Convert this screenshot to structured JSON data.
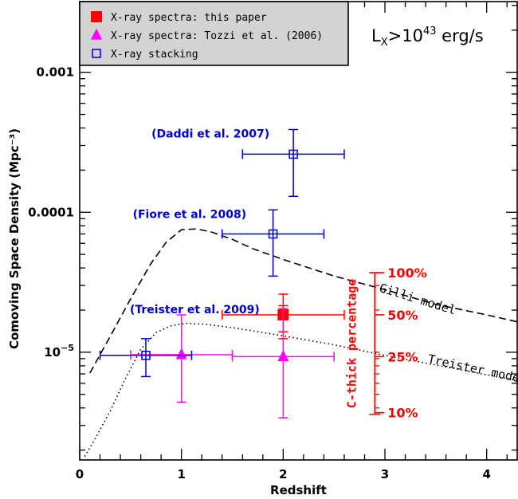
{
  "chart_data": {
    "type": "scatter",
    "title": "",
    "xlabel": "Redshift",
    "ylabel": "Comoving Space Density (Mpc⁻³)",
    "y_scale": "log",
    "xlim": [
      0,
      4.3
    ],
    "ylim": [
      1.7e-06,
      0.0032
    ],
    "grid": false,
    "legend_position": "top-left",
    "x_ticks": [
      {
        "value": 0,
        "label": "0"
      },
      {
        "value": 1,
        "label": "1"
      },
      {
        "value": 2,
        "label": "2"
      },
      {
        "value": 3,
        "label": "3"
      },
      {
        "value": 4,
        "label": "4"
      }
    ],
    "y_ticks": [
      {
        "value": 0.001,
        "label": "0.001"
      },
      {
        "value": 0.0001,
        "label": "0.0001"
      }
    ],
    "y_tick_exp": {
      "value": 1e-05,
      "base": "10",
      "exp": "−5"
    },
    "luminosity_label": {
      "base": "L",
      "sub": "X",
      "gt": ">10",
      "sup": "43",
      "rest": " erg/s"
    },
    "legend": [
      {
        "label": "X-ray spectra: this paper",
        "marker": "filled-square",
        "color": "#ff0000"
      },
      {
        "label": "X-ray spectra: Tozzi et al. (2006)",
        "marker": "filled-triangle",
        "color": "#ff00ff"
      },
      {
        "label": "X-ray stacking",
        "marker": "open-square",
        "color": "#0000cc"
      }
    ],
    "series": [
      {
        "name": "X-ray spectra: this paper",
        "marker": "filled-square",
        "color": "#ff0000",
        "points": [
          {
            "x": 2.0,
            "y": 1.85e-05,
            "xerr": [
              1.4,
              2.6
            ],
            "yerr": [
              1.25e-05,
              2.6e-05
            ],
            "yerr_inner": [
              1.4e-05,
              2.15e-05
            ]
          }
        ]
      },
      {
        "name": "X-ray spectra: Tozzi et al. (2006)",
        "marker": "filled-triangle",
        "color": "#ff00ff",
        "points": [
          {
            "x": 1.0,
            "y": 9.6e-06,
            "xerr": [
              0.5,
              1.5
            ],
            "yerr": [
              4.4e-06,
              1.85e-05
            ]
          },
          {
            "x": 2.0,
            "y": 9.3e-06,
            "xerr": [
              1.5,
              2.5
            ],
            "yerr": [
              3.4e-06,
              2.05e-05
            ]
          }
        ]
      },
      {
        "name": "X-ray stacking",
        "marker": "open-square",
        "color": "#0000cc",
        "points": [
          {
            "x": 2.1,
            "y": 0.00026,
            "xerr": [
              1.6,
              2.6
            ],
            "yerr": [
              0.00013,
              0.00039
            ],
            "label": "(Daddi et al. 2007)"
          },
          {
            "x": 1.9,
            "y": 7e-05,
            "xerr": [
              1.4,
              2.4
            ],
            "yerr": [
              3.5e-05,
              0.000104
            ],
            "label": "(Fiore et al. 2008)"
          },
          {
            "x": 0.65,
            "y": 9.5e-06,
            "xerr": [
              0.2,
              1.1
            ],
            "yerr": [
              6.7e-06,
              1.25e-05
            ],
            "label": "(Treister et al. 2009)"
          }
        ]
      }
    ],
    "model_curves": [
      {
        "name": "Gilli model",
        "label": "Gilli model",
        "style": "dashed",
        "color": "#000000",
        "x": [
          0.1,
          0.3,
          0.5,
          0.7,
          0.85,
          1.0,
          1.15,
          1.3,
          1.5,
          1.7,
          2.0,
          2.5,
          3.0,
          3.5,
          4.0,
          4.3
        ],
        "y": [
          7.1e-06,
          1.3e-05,
          2.4e-05,
          4.3e-05,
          6.1e-05,
          7.5e-05,
          7.6e-05,
          7.2e-05,
          6.4e-05,
          5.5e-05,
          4.6e-05,
          3.5e-05,
          2.8e-05,
          2.2e-05,
          1.85e-05,
          1.65e-05
        ]
      },
      {
        "name": "Treister model",
        "label": "Treister model",
        "style": "dotted",
        "color": "#000000",
        "x": [
          0.05,
          0.15,
          0.3,
          0.45,
          0.6,
          0.75,
          0.9,
          1.05,
          1.25,
          1.5,
          2.0,
          2.5,
          3.0,
          3.5,
          4.0,
          4.3
        ],
        "y": [
          1.8e-06,
          2.4e-06,
          3.8e-06,
          6.5e-06,
          1.05e-05,
          1.38e-05,
          1.55e-05,
          1.61e-05,
          1.58e-05,
          1.5e-05,
          1.31e-05,
          1.13e-05,
          9.5e-06,
          8.1e-06,
          6.9e-06,
          6.3e-06
        ]
      }
    ],
    "cthick_scale": {
      "title": "C-thick percentage",
      "color": "#ff0000",
      "x": 2.9,
      "range": [
        3.6e-06,
        3.7e-05
      ],
      "ticks": [
        {
          "label": "100%",
          "y": 3.7e-05
        },
        {
          "label": "50%",
          "y": 1.85e-05
        },
        {
          "label": "25%",
          "y": 9.3e-06
        },
        {
          "label": "10%",
          "y": 3.7e-06
        }
      ]
    }
  }
}
